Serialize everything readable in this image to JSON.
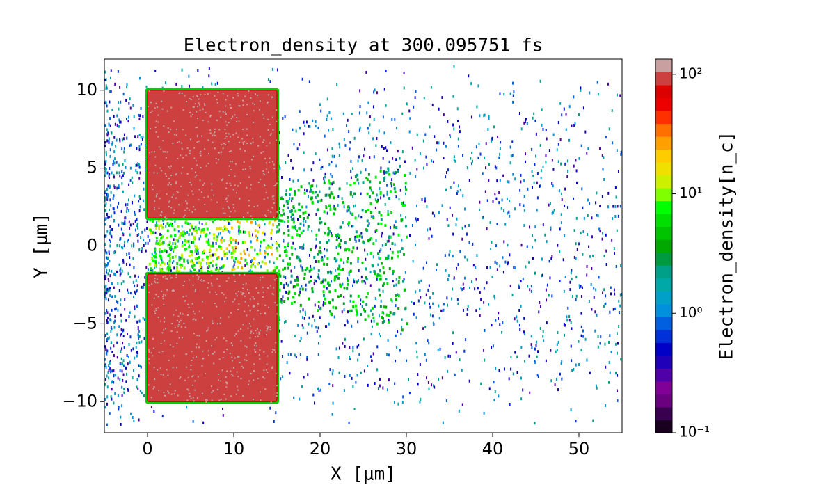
{
  "chart_data": {
    "type": "heatmap",
    "title": "Electron_density at 300.095751 fs",
    "xlabel": "X [μm]",
    "ylabel": "Y [μm]",
    "xlim": [
      -5,
      55
    ],
    "xticks": [
      0,
      10,
      20,
      30,
      40,
      50
    ],
    "ylim": [
      -12,
      12
    ],
    "yticks": [
      {
        "value": -10,
        "label": "−10"
      },
      {
        "value": -5,
        "label": "−5"
      },
      0,
      5,
      10
    ],
    "colorbar": {
      "label": "Electron_density[n_c]",
      "log_scale": true,
      "lim": [
        0.1,
        134
      ],
      "ticks": [
        {
          "value": 0.1,
          "label": "10⁻¹"
        },
        {
          "value": 1,
          "label": "10⁰"
        },
        {
          "value": 10,
          "label": "10¹"
        },
        {
          "value": 100,
          "label": "10²"
        }
      ],
      "colormap": [
        "#1a0020",
        "#3a0050",
        "#6a0080",
        "#800098",
        "#5000a8",
        "#2000b8",
        "#0000c8",
        "#0030d8",
        "#0060e0",
        "#0090dd",
        "#00a0c8",
        "#00a8a8",
        "#00a088",
        "#009a40",
        "#00a800",
        "#00c400",
        "#00e000",
        "#00ff00",
        "#80ff00",
        "#ccf000",
        "#f0e000",
        "#ffcc00",
        "#ffa000",
        "#ff7000",
        "#ff3000",
        "#ee0000",
        "#dd0000",
        "#cc4040",
        "#c8a0a0"
      ]
    }
  }
}
